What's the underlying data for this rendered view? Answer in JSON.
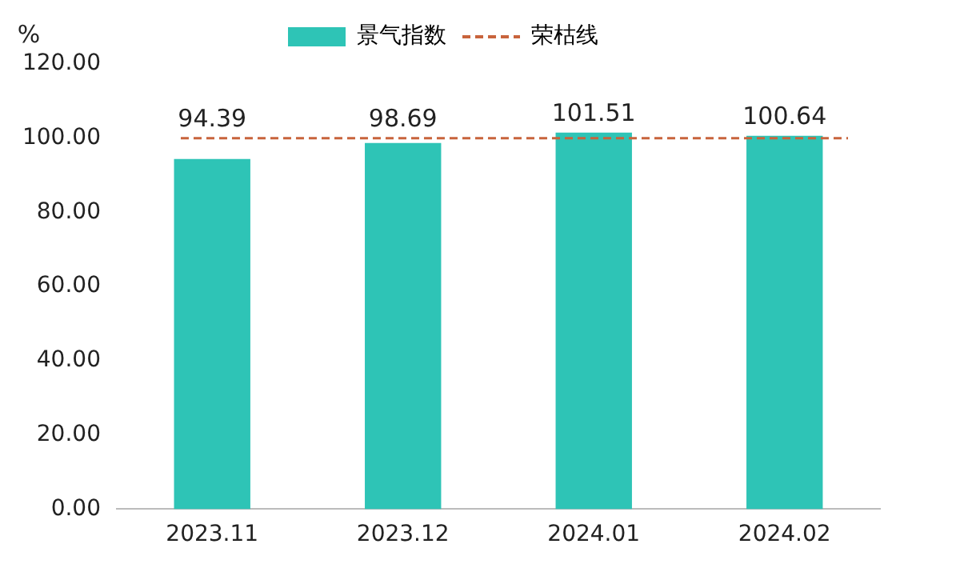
{
  "chart_data": {
    "type": "bar",
    "ylabel": "%",
    "categories": [
      "2023.11",
      "2023.12",
      "2024.01",
      "2024.02"
    ],
    "series": [
      {
        "name": "景气指数",
        "color": "#2ec4b6",
        "values": [
          94.39,
          98.69,
          101.51,
          100.64
        ]
      }
    ],
    "ylim": [
      0,
      120
    ],
    "yticks": [
      {
        "value": 0,
        "label": "0.00"
      },
      {
        "value": 20,
        "label": "20.00"
      },
      {
        "value": 40,
        "label": "40.00"
      },
      {
        "value": 60,
        "label": "60.00"
      },
      {
        "value": 80,
        "label": "80.00"
      },
      {
        "value": 100,
        "label": "100.00"
      },
      {
        "value": 120,
        "label": "120.00"
      }
    ],
    "ref_lines": [
      {
        "axis": "y",
        "value": 100,
        "label": "荣枯线",
        "color": "#c8643c",
        "line_style": "dashed"
      }
    ],
    "data_labels": true,
    "grid": false,
    "legend": "top"
  }
}
